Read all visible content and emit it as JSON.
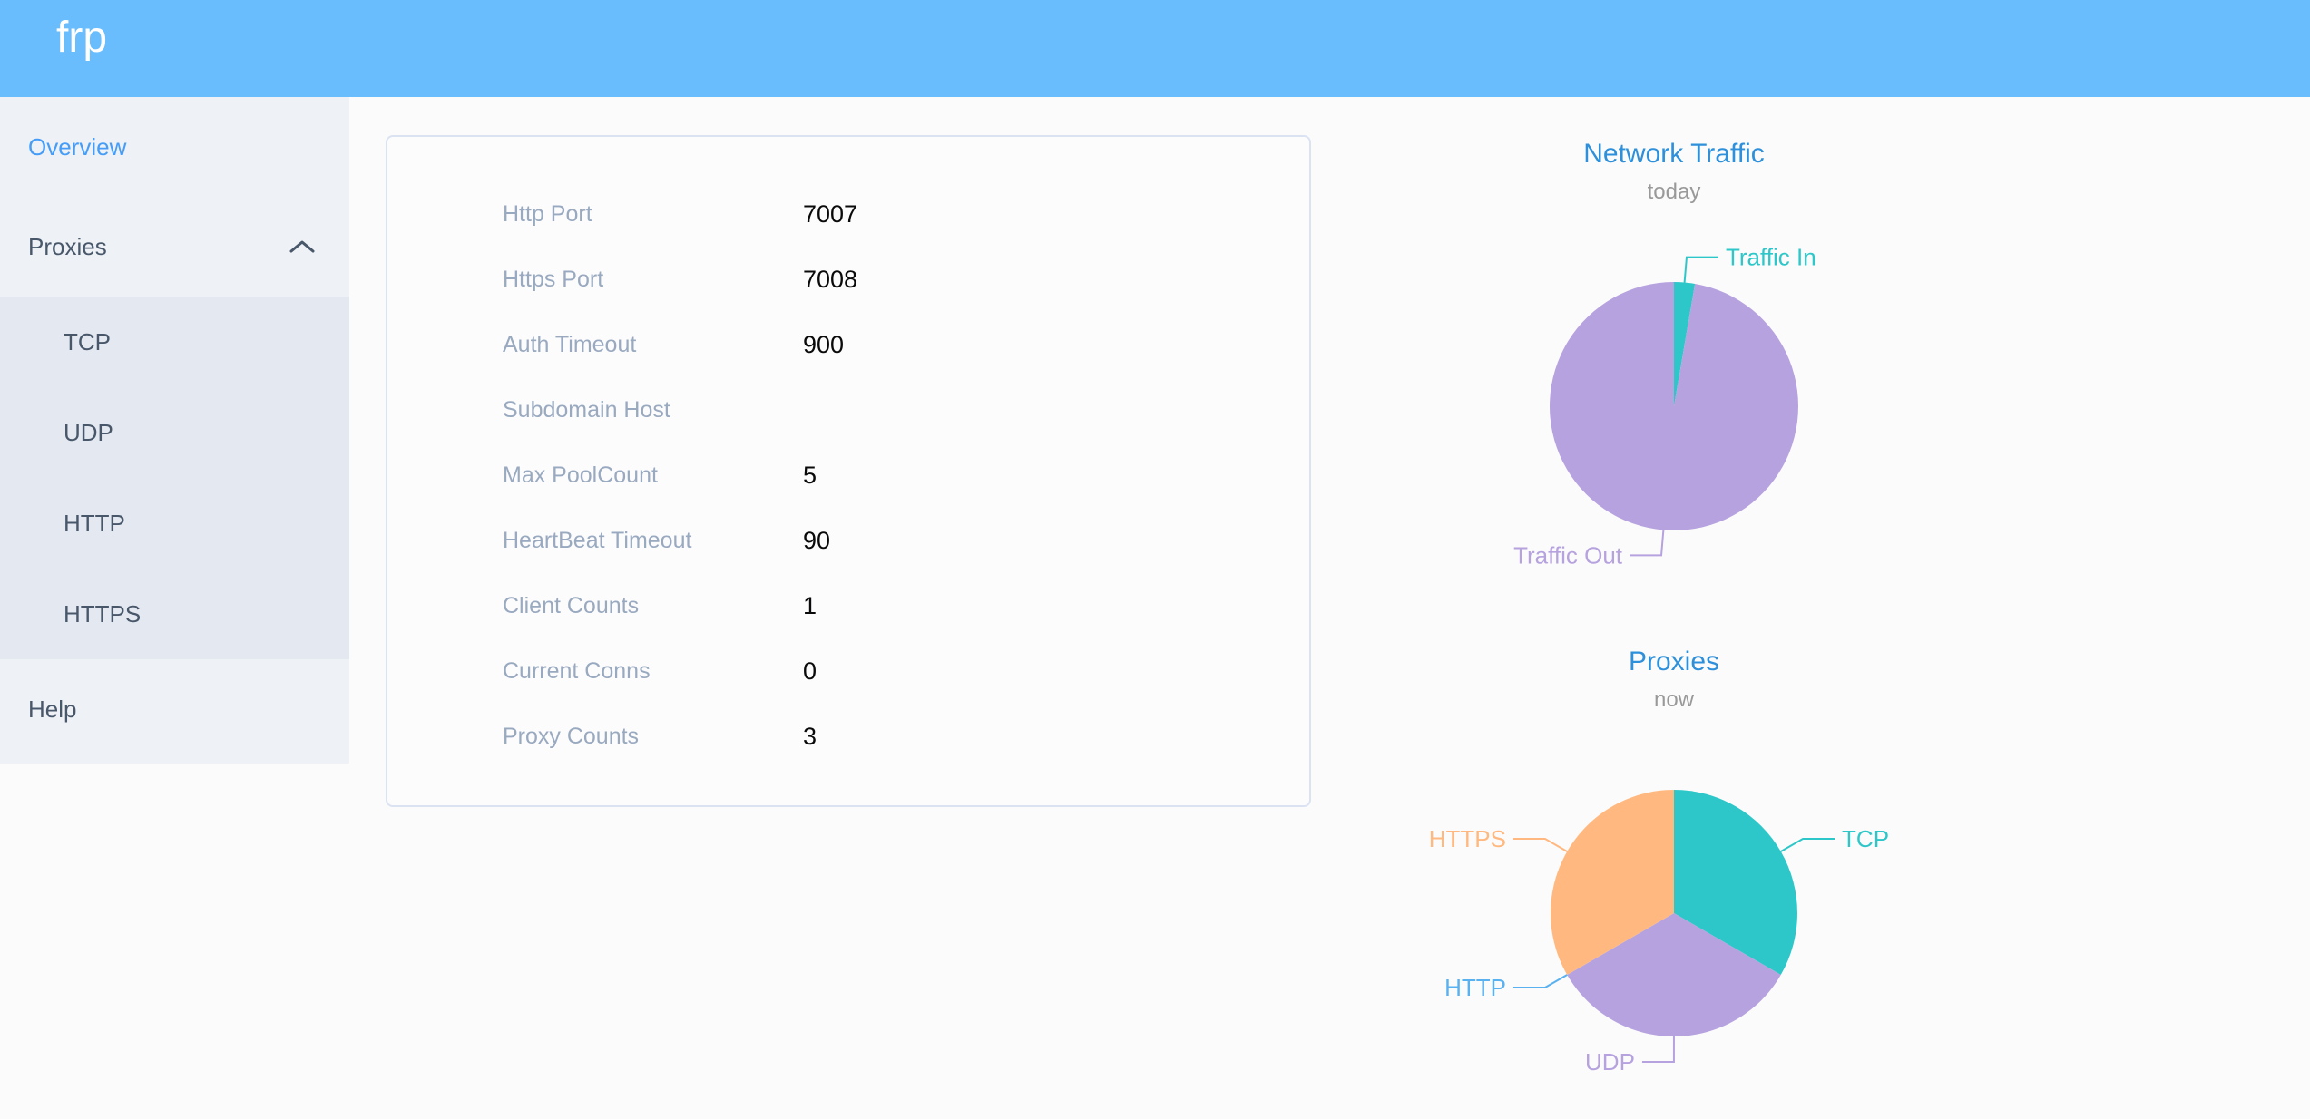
{
  "header": {
    "logo": "frp"
  },
  "sidebar": {
    "items": [
      {
        "label": "Overview",
        "active": true
      },
      {
        "label": "Proxies",
        "expanded": true
      },
      {
        "label": "Help"
      }
    ],
    "proxies_submenu": [
      "TCP",
      "UDP",
      "HTTP",
      "HTTPS"
    ]
  },
  "overview": {
    "rows": [
      {
        "label": "Http Port",
        "value": "7007"
      },
      {
        "label": "Https Port",
        "value": "7008"
      },
      {
        "label": "Auth Timeout",
        "value": "900"
      },
      {
        "label": "Subdomain Host",
        "value": ""
      },
      {
        "label": "Max PoolCount",
        "value": "5"
      },
      {
        "label": "HeartBeat Timeout",
        "value": "90"
      },
      {
        "label": "Client Counts",
        "value": "1"
      },
      {
        "label": "Current Conns",
        "value": "0"
      },
      {
        "label": "Proxy Counts",
        "value": "3"
      }
    ]
  },
  "chart_data": [
    {
      "type": "pie",
      "title": "Network Traffic",
      "subtitle": "today",
      "legend_position": "none",
      "slices": [
        {
          "label": "Traffic In",
          "percent": 2.7,
          "color": "#2ec7c9"
        },
        {
          "label": "Traffic Out",
          "percent": 97.3,
          "color": "#b6a2de"
        }
      ]
    },
    {
      "type": "pie",
      "title": "Proxies",
      "subtitle": "now",
      "legend_position": "none",
      "slices": [
        {
          "label": "TCP",
          "value": 1,
          "percent": 33.34,
          "color": "#2ec7c9"
        },
        {
          "label": "UDP",
          "value": 1,
          "percent": 33.33,
          "color": "#b6a2de"
        },
        {
          "label": "HTTP",
          "value": 0,
          "percent": 0,
          "color": "#5ab1ef"
        },
        {
          "label": "HTTPS",
          "value": 1,
          "percent": 33.33,
          "color": "#ffb980"
        }
      ]
    }
  ],
  "theme": {
    "header_bg": "#6abdfc",
    "active_item": "#459df8",
    "title_blue": "#2e90da",
    "sidebar_bg": "#eef1f6",
    "submenu_bg": "#e4e8f1"
  }
}
